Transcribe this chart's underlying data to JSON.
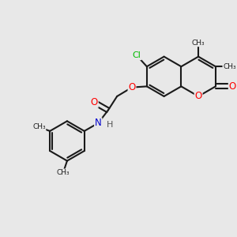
{
  "background_color": "#e8e8e8",
  "bond_color": "#1a1a1a",
  "bond_width": 1.5,
  "atom_colors": {
    "O": "#ff0000",
    "N": "#0000cc",
    "Cl": "#00bb00",
    "C": "#1a1a1a",
    "H": "#555555"
  },
  "figsize": [
    3.0,
    3.0
  ],
  "dpi": 100,
  "xlim": [
    0,
    10
  ],
  "ylim": [
    0,
    10
  ]
}
